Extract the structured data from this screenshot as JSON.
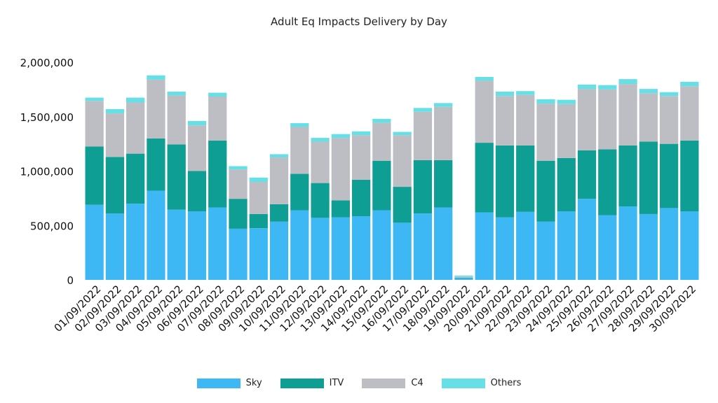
{
  "chart_data": {
    "type": "bar",
    "stacked": true,
    "title": "Adult Eq Impacts Delivery by Day",
    "xlabel": "",
    "ylabel": "",
    "ylim": [
      0,
      2000000
    ],
    "yticks": [
      "0",
      "500,000",
      "1,000,000",
      "1,500,000",
      "2,000,000"
    ],
    "ytick_values": [
      0,
      500000,
      1000000,
      1500000,
      2000000
    ],
    "grid": false,
    "legend_position": "bottom",
    "categories": [
      "01/09/2022",
      "02/09/2022",
      "03/09/2022",
      "04/09/2022",
      "05/09/2022",
      "06/09/2022",
      "07/09/2022",
      "08/09/2022",
      "09/09/2022",
      "10/09/2022",
      "11/09/2022",
      "12/09/2022",
      "13/09/2022",
      "14/09/2022",
      "15/09/2022",
      "16/09/2022",
      "17/09/2022",
      "18/09/2022",
      "19/09/2022",
      "20/09/2022",
      "21/09/2022",
      "22/09/2022",
      "23/09/2022",
      "24/09/2022",
      "25/09/2022",
      "26/09/2022",
      "27/09/2022",
      "28/09/2022",
      "29/09/2022",
      "30/09/2022"
    ],
    "series": [
      {
        "name": "Sky",
        "color": "#3db8f5",
        "values": [
          690000,
          610000,
          700000,
          820000,
          645000,
          630000,
          665000,
          470000,
          475000,
          535000,
          640000,
          570000,
          575000,
          585000,
          640000,
          525000,
          610000,
          665000,
          15000,
          620000,
          575000,
          625000,
          535000,
          630000,
          745000,
          595000,
          675000,
          605000,
          660000,
          630000
        ]
      },
      {
        "name": "ITV",
        "color": "#0e9e94",
        "values": [
          535000,
          520000,
          460000,
          480000,
          600000,
          370000,
          615000,
          275000,
          130000,
          160000,
          335000,
          320000,
          155000,
          335000,
          455000,
          330000,
          490000,
          435000,
          5000,
          640000,
          660000,
          610000,
          560000,
          490000,
          445000,
          605000,
          560000,
          665000,
          590000,
          650000
        ]
      },
      {
        "name": "C4",
        "color": "#bcbec4",
        "values": [
          420000,
          400000,
          470000,
          540000,
          450000,
          420000,
          405000,
          270000,
          295000,
          430000,
          430000,
          380000,
          575000,
          410000,
          350000,
          475000,
          445000,
          490000,
          10000,
          570000,
          455000,
          465000,
          525000,
          495000,
          565000,
          550000,
          565000,
          445000,
          440000,
          500000
        ]
      },
      {
        "name": "Others",
        "color": "#66e0e6",
        "values": [
          30000,
          40000,
          45000,
          40000,
          35000,
          40000,
          35000,
          30000,
          40000,
          30000,
          35000,
          35000,
          35000,
          35000,
          35000,
          30000,
          35000,
          35000,
          10000,
          35000,
          40000,
          35000,
          40000,
          40000,
          40000,
          40000,
          45000,
          40000,
          35000,
          40000
        ]
      }
    ]
  }
}
